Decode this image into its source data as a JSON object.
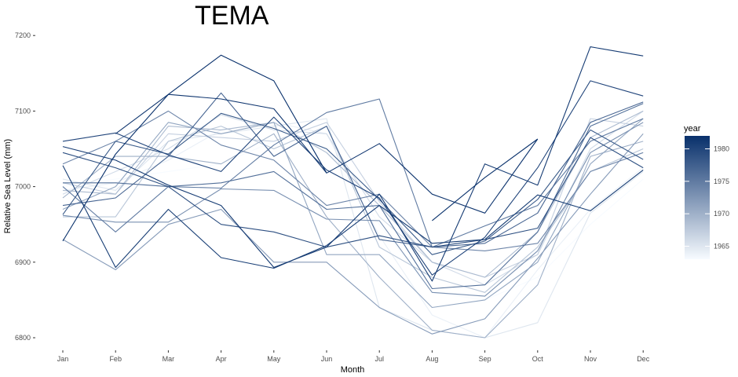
{
  "chart_data": {
    "type": "line",
    "title": "TEMA",
    "xlabel": "Month",
    "ylabel": "Relative Sea Level (mm)",
    "categories": [
      "Jan",
      "Feb",
      "Mar",
      "Apr",
      "May",
      "Jun",
      "Jul",
      "Aug",
      "Sep",
      "Oct",
      "Nov",
      "Dec"
    ],
    "yticks": [
      6800,
      6900,
      7000,
      7100,
      7200
    ],
    "ylim": [
      6790,
      7205
    ],
    "grid": false,
    "legend": {
      "title": "year",
      "position": "right",
      "ticks": [
        1965,
        1970,
        1975,
        1980
      ],
      "range": [
        1963,
        1982
      ],
      "color_low": "#f7fbff",
      "color_high": "#08306b"
    },
    "series": [
      {
        "year": 1963,
        "values": [
          7000,
          7010,
          7020,
          7030,
          7060,
          7050,
          6950,
          6860,
          6850,
          6880,
          6950,
          7010
        ]
      },
      {
        "year": 1964,
        "values": [
          6995,
          7005,
          7035,
          7075,
          7085,
          7070,
          6935,
          6830,
          6800,
          6890,
          6970,
          7025
        ]
      },
      {
        "year": 1965,
        "values": [
          7010,
          6995,
          7060,
          7070,
          7080,
          7090,
          6840,
          6810,
          6800,
          6820,
          6965,
          7020
        ]
      },
      {
        "year": 1966,
        "values": [
          6990,
          7020,
          7050,
          7095,
          7075,
          7070,
          6960,
          6900,
          6870,
          6910,
          7050,
          7100
        ]
      },
      {
        "year": 1967,
        "values": [
          7005,
          6990,
          7070,
          7065,
          7060,
          7085,
          6980,
          6900,
          6880,
          6910,
          7090,
          7080
        ]
      },
      {
        "year": 1968,
        "values": [
          6960,
          6960,
          7060,
          7080,
          7050,
          7080,
          6920,
          6880,
          6860,
          6920,
          7020,
          7050
        ]
      },
      {
        "year": 1969,
        "values": [
          6995,
          6990,
          7080,
          7075,
          7085,
          7045,
          6975,
          6900,
          6880,
          6940,
          7065,
          7100
        ]
      },
      {
        "year": 1970,
        "values": [
          6985,
          7040,
          7040,
          7030,
          7070,
          6960,
          6880,
          6810,
          6800,
          6870,
          7040,
          7060
        ]
      },
      {
        "year": 1971,
        "values": [
          6970,
          7000,
          7085,
          7070,
          7085,
          6910,
          6910,
          6840,
          6850,
          6900,
          7030,
          7090
        ]
      },
      {
        "year": 1972,
        "values": [
          6930,
          6890,
          6950,
          6970,
          6900,
          6900,
          6840,
          6805,
          6825,
          6905,
          6990,
          7070
        ]
      },
      {
        "year": 1973,
        "values": [
          6962,
          6953,
          6953,
          6997,
          6995,
          6957,
          6955,
          6860,
          6855,
          6915,
          7045,
          7085
        ]
      },
      {
        "year": 1974,
        "values": [
          7030,
          7060,
          7100,
          7055,
          7035,
          6975,
          6990,
          6920,
          6915,
          6925,
          7020,
          7045
        ]
      },
      {
        "year": 1975,
        "values": [
          7000,
          6940,
          7000,
          6998,
          7055,
          7098,
          7116,
          6920,
          6948,
          6975,
          7060,
          7090
        ]
      },
      {
        "year": 1976,
        "values": [
          7005,
          7005,
          7000,
          7005,
          7020,
          6970,
          6975,
          6865,
          6870,
          6940,
          7080,
          7110
        ]
      },
      {
        "year": 1977,
        "values": [
          6975,
          6985,
          7040,
          7124,
          7040,
          7080,
          6930,
          6920,
          6925,
          6965,
          7085,
          7112
        ]
      },
      {
        "year": 1978,
        "values": [
          6963,
          7060,
          7043,
          7097,
          7077,
          7050,
          6983,
          6910,
          6928,
          6983,
          7075,
          7036
        ]
      },
      {
        "year": 1979,
        "values": [
          7045,
          7025,
          7000,
          6950,
          6940,
          6920,
          6935,
          6920,
          6930,
          6945,
          7065,
          7025
        ]
      },
      {
        "year": 1980,
        "values": [
          7060,
          7071,
          7042,
          7020,
          7092,
          7022,
          6985,
          6883,
          6933,
          7025,
          7140,
          7120
        ]
      },
      {
        "year": 1980.7,
        "values": [
          7028,
          6893,
          6970,
          6906,
          6892,
          6922,
          6975,
          6925,
          6930,
          6989,
          6968,
          7022
        ]
      },
      {
        "year": 1981,
        "values": [
          7053,
          7035,
          7002,
          6975,
          6893,
          6920,
          6990,
          6875,
          7030,
          7002,
          7185,
          7173
        ]
      },
      {
        "year": 1981.3,
        "values": [
          null,
          7070,
          7122,
          7116,
          7103,
          7018,
          7057,
          6990,
          6965,
          7063,
          null,
          null
        ]
      },
      {
        "year": 1982,
        "values": [
          6928,
          7043,
          7122,
          7174,
          7140,
          7018,
          null,
          null,
          null,
          null,
          null,
          null
        ]
      },
      {
        "year": 1982.5,
        "values": [
          null,
          null,
          null,
          null,
          null,
          null,
          null,
          6955,
          7012,
          7063,
          null,
          null
        ]
      }
    ]
  }
}
